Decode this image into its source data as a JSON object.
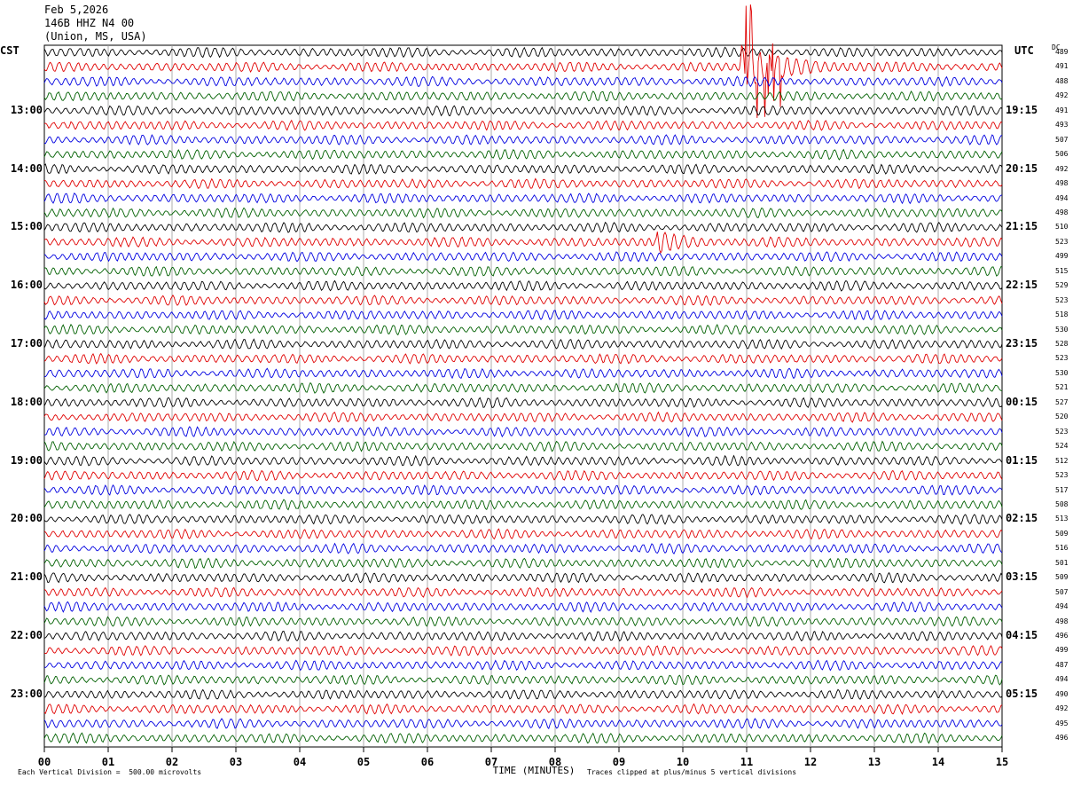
{
  "header": {
    "date": "Feb 5,2026",
    "station": "146B HHZ N4 00",
    "location": "(Union, MS, USA)"
  },
  "left_tz": "CST",
  "right_tz": "UTC",
  "dc_label": "DC",
  "chart_data": {
    "type": "line",
    "title": "",
    "xlabel": "TIME (MINUTES)",
    "x_ticks": [
      "00",
      "01",
      "02",
      "03",
      "04",
      "05",
      "06",
      "07",
      "08",
      "09",
      "10",
      "11",
      "12",
      "13",
      "14",
      "15"
    ],
    "xlim": [
      0,
      15
    ],
    "left_hour_labels": [
      "13:00",
      "14:00",
      "15:00",
      "16:00",
      "17:00",
      "18:00",
      "19:00",
      "20:00",
      "21:00",
      "22:00",
      "23:00"
    ],
    "right_hour_labels": [
      "19:15",
      "20:15",
      "21:15",
      "22:15",
      "23:15",
      "00:15",
      "01:15",
      "02:15",
      "03:15",
      "04:15",
      "05:15"
    ],
    "trace_colors": [
      "#000000",
      "#e00000",
      "#0000e0",
      "#006000"
    ],
    "dc_values": [
      "489",
      "491",
      "488",
      "492",
      "491",
      "493",
      "507",
      "506",
      "492",
      "498",
      "494",
      "498",
      "510",
      "523",
      "499",
      "515",
      "529",
      "523",
      "518",
      "530",
      "528",
      "523",
      "530",
      "521",
      "527",
      "520",
      "523",
      "524",
      "512",
      "523",
      "517",
      "508",
      "513",
      "509",
      "516",
      "501",
      "509",
      "507",
      "494",
      "498",
      "496",
      "499",
      "487",
      "494",
      "490",
      "492",
      "495",
      "496"
    ],
    "events": [
      {
        "trace": 1,
        "start_min": 10.9,
        "end_min": 12.9,
        "amplitude": "large, clipped"
      },
      {
        "trace": 13,
        "start_min": 9.6,
        "end_min": 10.9,
        "amplitude": "moderate"
      }
    ]
  },
  "footer": {
    "scale": "Each Vertical Division =  500.00 microvolts",
    "clip_note": "Traces clipped at plus/minus 5 vertical divisions"
  }
}
